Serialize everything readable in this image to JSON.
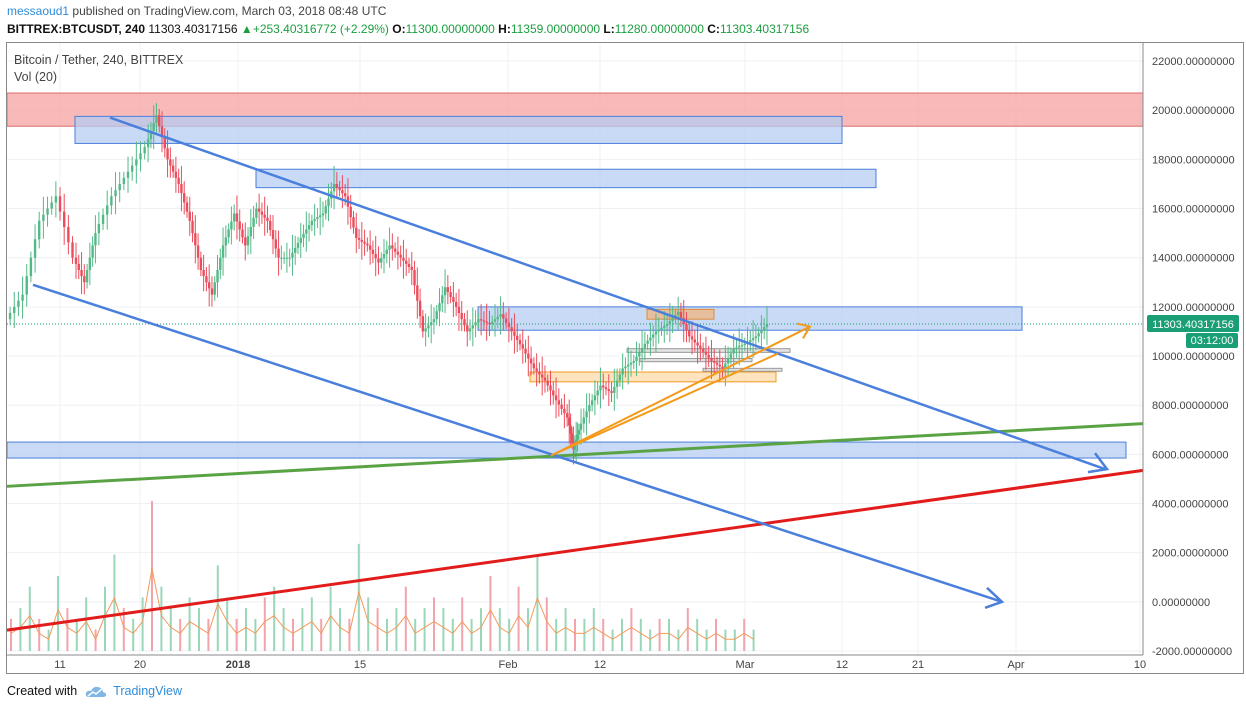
{
  "header": {
    "publisher": "messaoud1",
    "published_text": "published on TradingView.com, March 03, 2018 08:48 UTC",
    "symbol": "BITTREX:BTCUSDT, 240",
    "price": "11303.40317156",
    "change": "+253.40316772 (+2.29%)",
    "o_label": "O:",
    "o": "11300.00000000",
    "h_label": "H:",
    "h": "11359.00000000",
    "l_label": "L:",
    "l": "11280.00000000",
    "c_label": "C:",
    "c": "11303.40317156"
  },
  "legend": {
    "title": "Bitcoin / Tether, 240, BITTREX",
    "volume": "Vol (20)"
  },
  "footer": {
    "created_with": "Created with",
    "brand": "TradingView"
  },
  "chart_data": {
    "type": "candlestick",
    "title": "Bitcoin / Tether, 240, BITTREX",
    "ylim": [
      -2000,
      22500
    ],
    "y_ticks": [
      "22000.00000000",
      "20000.00000000",
      "18000.00000000",
      "16000.00000000",
      "14000.00000000",
      "12000.00000000",
      "10000.00000000",
      "8000.00000000",
      "6000.00000000",
      "4000.00000000",
      "2000.00000000",
      "0.00000000",
      "-2000.00000000"
    ],
    "y_tick_values": [
      22000,
      20000,
      18000,
      16000,
      14000,
      12000,
      10000,
      8000,
      6000,
      4000,
      2000,
      0,
      -2000
    ],
    "x_ticks": [
      "11",
      "20",
      "2018",
      "15",
      "Feb",
      "12",
      "Mar",
      "12",
      "21",
      "Apr",
      "10"
    ],
    "last_price_label": "11303.40317156",
    "countdown_label": "03:12:00",
    "colors": {
      "up": "#53b987",
      "down": "#eb4d5c",
      "channel": "#4a7fdc",
      "support": "#5aa345",
      "base": "#e21b1b",
      "orange": "#f39a1b",
      "zone_blue": "#b6cdf2",
      "zone_red": "#f6a2a2",
      "label_bg": "#1a9e75"
    },
    "price_path": [
      [
        0,
        11500
      ],
      [
        3,
        12500
      ],
      [
        6,
        15500
      ],
      [
        9,
        16500
      ],
      [
        12,
        14000
      ],
      [
        14,
        13000
      ],
      [
        16,
        15000
      ],
      [
        19,
        16500
      ],
      [
        22,
        17500
      ],
      [
        25,
        18500
      ],
      [
        27,
        19800
      ],
      [
        29,
        18000
      ],
      [
        31,
        17000
      ],
      [
        33,
        15500
      ],
      [
        35,
        13500
      ],
      [
        37,
        12500
      ],
      [
        39,
        14500
      ],
      [
        41,
        15800
      ],
      [
        43,
        14500
      ],
      [
        45,
        16000
      ],
      [
        47,
        15500
      ],
      [
        49,
        14000
      ],
      [
        51,
        14000
      ],
      [
        53,
        14800
      ],
      [
        55,
        15500
      ],
      [
        57,
        15800
      ],
      [
        59,
        17000
      ],
      [
        61,
        16500
      ],
      [
        63,
        14800
      ],
      [
        65,
        14500
      ],
      [
        67,
        13800
      ],
      [
        69,
        14500
      ],
      [
        71,
        14000
      ],
      [
        73,
        13500
      ],
      [
        75,
        11000
      ],
      [
        77,
        11500
      ],
      [
        79,
        12800
      ],
      [
        81,
        12000
      ],
      [
        83,
        11000
      ],
      [
        85,
        11500
      ],
      [
        87,
        11300
      ],
      [
        89,
        11700
      ],
      [
        91,
        11000
      ],
      [
        93,
        10300
      ],
      [
        95,
        9500
      ],
      [
        97,
        9000
      ],
      [
        99,
        8200
      ],
      [
        101,
        7500
      ],
      [
        102,
        6200
      ],
      [
        103,
        7000
      ],
      [
        105,
        8000
      ],
      [
        107,
        8800
      ],
      [
        109,
        8500
      ],
      [
        111,
        9500
      ],
      [
        113,
        9800
      ],
      [
        115,
        10500
      ],
      [
        117,
        11000
      ],
      [
        119,
        11300
      ],
      [
        121,
        11800
      ],
      [
        123,
        10800
      ],
      [
        125,
        10300
      ],
      [
        127,
        9800
      ],
      [
        129,
        9500
      ],
      [
        131,
        10300
      ],
      [
        133,
        10500
      ],
      [
        135,
        10800
      ],
      [
        137,
        11303
      ]
    ],
    "volume": [
      3,
      4,
      6,
      3,
      2,
      7,
      4,
      3,
      5,
      2,
      6,
      9,
      4,
      3,
      5,
      14,
      6,
      4,
      3,
      5,
      4,
      3,
      8,
      5,
      3,
      4,
      3,
      5,
      6,
      4,
      3,
      4,
      5,
      3,
      6,
      4,
      3,
      10,
      5,
      4,
      3,
      4,
      6,
      3,
      4,
      5,
      4,
      3,
      5,
      3,
      4,
      7,
      4,
      3,
      6,
      4,
      9,
      5,
      3,
      4,
      3,
      3,
      4,
      3,
      2,
      3,
      4,
      3,
      2,
      3,
      3,
      2,
      4,
      3,
      2,
      3,
      2,
      2,
      3,
      2
    ]
  }
}
